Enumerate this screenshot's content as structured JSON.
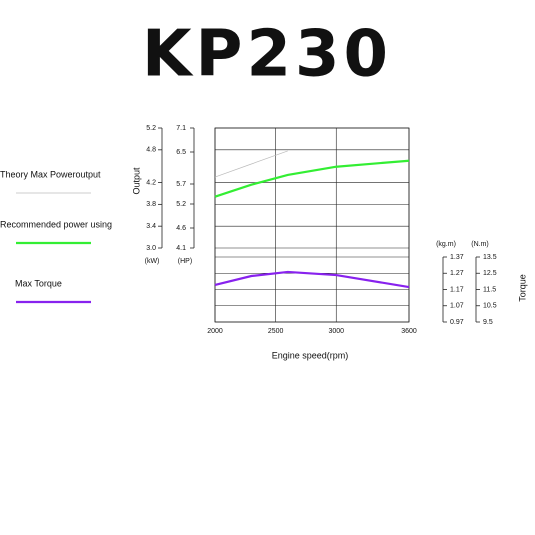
{
  "chart_data": {
    "type": "line",
    "title": "KP230",
    "x": [
      2000,
      2300,
      2600,
      3000,
      3600
    ],
    "xlim": [
      2000,
      3600
    ],
    "xticks": [
      2000,
      2500,
      3000,
      3600
    ],
    "xlabel": "Engine speed(rpm)",
    "ylabel": "Output",
    "ylim": [
      3.0,
      5.2
    ],
    "yticks": [
      {
        "value": 3.0,
        "label": "3.0"
      },
      3.4,
      3.8,
      4.2,
      4.8,
      5.2
    ],
    "yunit": "(kW)",
    "hp_axis": {
      "unit": "(HP)",
      "lim": [
        4.1,
        7.1
      ],
      "ticks": [
        4.1,
        4.6,
        5.2,
        5.7,
        6.5,
        7.1
      ]
    },
    "y2label": "Torque",
    "y2unit": "(N.m)",
    "y2lim": [
      9.5,
      13.5
    ],
    "y2ticks": [
      9.5,
      10.5,
      11.5,
      12.5,
      13.5
    ],
    "kgm_axis": {
      "unit": "(kg.m)",
      "lim": [
        0.97,
        1.37
      ],
      "ticks": [
        0.97,
        1.07,
        1.17,
        1.27,
        1.37
      ]
    },
    "grid": true,
    "series": [
      {
        "name": "Theory Max Poweroutput",
        "color": "#bbbbbb",
        "values": [
          4.3,
          4.54,
          4.78,
          null,
          null
        ]
      },
      {
        "name": "Recommended power using",
        "color": "#33ee33",
        "values": [
          3.94,
          4.16,
          4.34,
          4.49,
          4.6
        ]
      },
      {
        "name": "Max Torque",
        "color": "#8822ee",
        "axis": "y2",
        "values": [
          11.78,
          12.33,
          12.58,
          12.39,
          11.65
        ]
      }
    ]
  }
}
